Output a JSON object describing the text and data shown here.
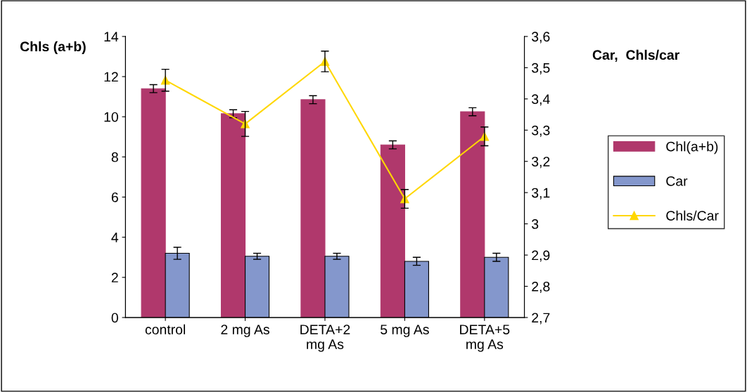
{
  "chart_data": {
    "type": "bar",
    "categories": [
      "control",
      "2 mg As",
      "DETA+2\nmg As",
      "5 mg As",
      "DETA+5\nmg As"
    ],
    "ylabel": "Chls (a+b)",
    "y2label": "Car,  Chls/car",
    "ylim": [
      0,
      14
    ],
    "yticks": [
      0,
      2,
      4,
      6,
      8,
      10,
      12,
      14
    ],
    "y2lim": [
      2.7,
      3.6
    ],
    "y2ticks": [
      {
        "value": 2.7,
        "label": "2,7"
      },
      {
        "value": 2.8,
        "label": "2,8"
      },
      {
        "value": 2.9,
        "label": "2,9"
      },
      {
        "value": 3.0,
        "label": "3"
      },
      {
        "value": 3.1,
        "label": "3,1"
      },
      {
        "value": 3.2,
        "label": "3,2"
      },
      {
        "value": 3.3,
        "label": "3,3"
      },
      {
        "value": 3.4,
        "label": "3,4"
      },
      {
        "value": 3.5,
        "label": "3,5"
      },
      {
        "value": 3.6,
        "label": "3,6"
      }
    ],
    "grid": false,
    "legend": "right",
    "marker": "triangle",
    "series": [
      {
        "name": "Chl(a+b)",
        "color": "#b0386c",
        "values": [
          11.4,
          10.15,
          10.85,
          8.6,
          10.25
        ],
        "errors": [
          0.2,
          0.2,
          0.2,
          0.2,
          0.2
        ]
      },
      {
        "name": "Car",
        "color": "#8497cc",
        "values": [
          3.2,
          3.05,
          3.05,
          2.8,
          3.0
        ],
        "errors": [
          0.3,
          0.15,
          0.15,
          0.2,
          0.2
        ]
      },
      {
        "name": "Chls/Car",
        "type": "line",
        "axis": "y2",
        "color": "#ffd700",
        "values": [
          3.46,
          3.32,
          3.52,
          3.08,
          3.28
        ],
        "errors": [
          0.035,
          0.04,
          0.033,
          0.03,
          0.03
        ]
      }
    ]
  }
}
